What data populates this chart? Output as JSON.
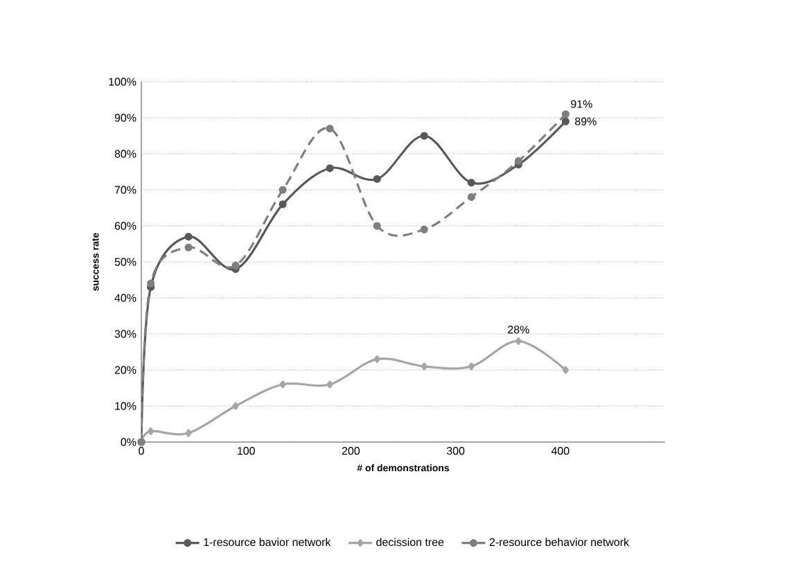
{
  "chart_data": {
    "type": "line",
    "xlabel": "# of demonstrations",
    "ylabel": "success rate",
    "xlim": [
      0,
      500
    ],
    "xticks": [
      0,
      100,
      200,
      300,
      400
    ],
    "ylim": [
      0,
      100
    ],
    "yticks": [
      {
        "value": 0,
        "label": "0%"
      },
      {
        "value": 10,
        "label": "10%"
      },
      {
        "value": 20,
        "label": "20%"
      },
      {
        "value": 30,
        "label": "30%"
      },
      {
        "value": 40,
        "label": "40%"
      },
      {
        "value": 50,
        "label": "50%"
      },
      {
        "value": 60,
        "label": "60%"
      },
      {
        "value": 70,
        "label": "70%"
      },
      {
        "value": 80,
        "label": "80%"
      },
      {
        "value": 90,
        "label": "90%"
      },
      {
        "value": 100,
        "label": "100%"
      }
    ],
    "grid": "y",
    "legend": "bottom",
    "x": [
      0,
      9,
      45,
      90,
      135,
      180,
      225,
      270,
      315,
      360,
      405
    ],
    "series": [
      {
        "name": "1-resource bavior network",
        "color": "#595959",
        "marker": "circle",
        "line_style": "solid",
        "values": [
          0,
          43,
          57,
          48,
          66,
          76,
          73,
          85,
          72,
          77,
          89
        ],
        "value_labels": [
          null,
          null,
          null,
          null,
          null,
          null,
          null,
          null,
          null,
          null,
          "89%"
        ]
      },
      {
        "name": "decission tree",
        "color": "#a6a6a6",
        "marker": "diamond",
        "line_style": "solid",
        "values": [
          0,
          3,
          2.5,
          10,
          16,
          16,
          23,
          21,
          21,
          28,
          20
        ],
        "value_labels": [
          null,
          null,
          null,
          null,
          null,
          null,
          null,
          null,
          null,
          "28%",
          null
        ]
      },
      {
        "name": "2-resource behavior network",
        "color": "#7f7f7f",
        "marker": "circle",
        "line_style": "dashed",
        "values": [
          0,
          44,
          54,
          49,
          70,
          87,
          60,
          59,
          68,
          78,
          91
        ],
        "value_labels": [
          null,
          null,
          null,
          null,
          null,
          null,
          null,
          null,
          null,
          null,
          "91%"
        ]
      }
    ]
  }
}
